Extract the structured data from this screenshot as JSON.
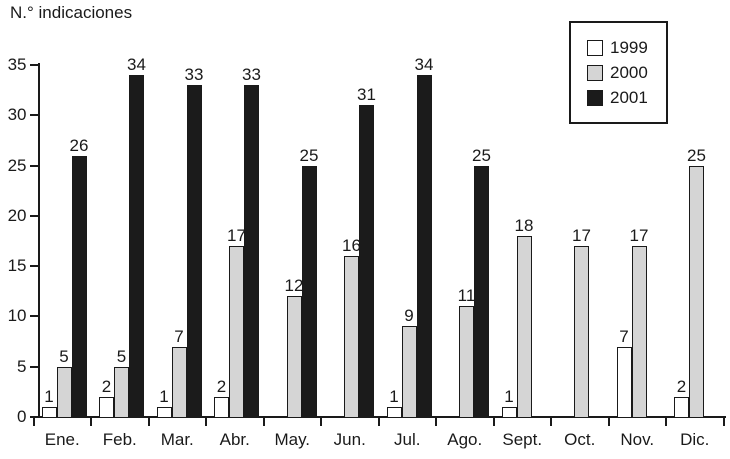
{
  "title": "N.° indicaciones",
  "colors": {
    "ink": "#1a1a1a",
    "background": "#ffffff"
  },
  "legend": {
    "position": "top-right",
    "entries": [
      "1999",
      "2000",
      "2001"
    ]
  },
  "chart_data": {
    "type": "bar",
    "title": "",
    "ylabel": "N.° indicaciones",
    "xlabel": "",
    "grid": false,
    "legend_position": "top-right",
    "bar_labels": true,
    "ylim": [
      0,
      35
    ],
    "yticks": [
      0,
      5,
      10,
      15,
      20,
      25,
      30,
      35
    ],
    "categories": [
      "Ene.",
      "Feb.",
      "Mar.",
      "Abr.",
      "May.",
      "Jun.",
      "Jul.",
      "Ago.",
      "Sept.",
      "Oct.",
      "Nov.",
      "Dic."
    ],
    "series": [
      {
        "name": "1999",
        "color": "#ffffff",
        "values": [
          1,
          2,
          1,
          2,
          null,
          null,
          1,
          null,
          1,
          null,
          7,
          2
        ]
      },
      {
        "name": "2000",
        "color": "#d5d5d5",
        "values": [
          5,
          5,
          7,
          17,
          12,
          16,
          9,
          11,
          18,
          17,
          17,
          25
        ]
      },
      {
        "name": "2001",
        "color": "#1b1b1b",
        "values": [
          26,
          34,
          33,
          33,
          25,
          31,
          34,
          25,
          null,
          null,
          null,
          null
        ]
      }
    ]
  }
}
